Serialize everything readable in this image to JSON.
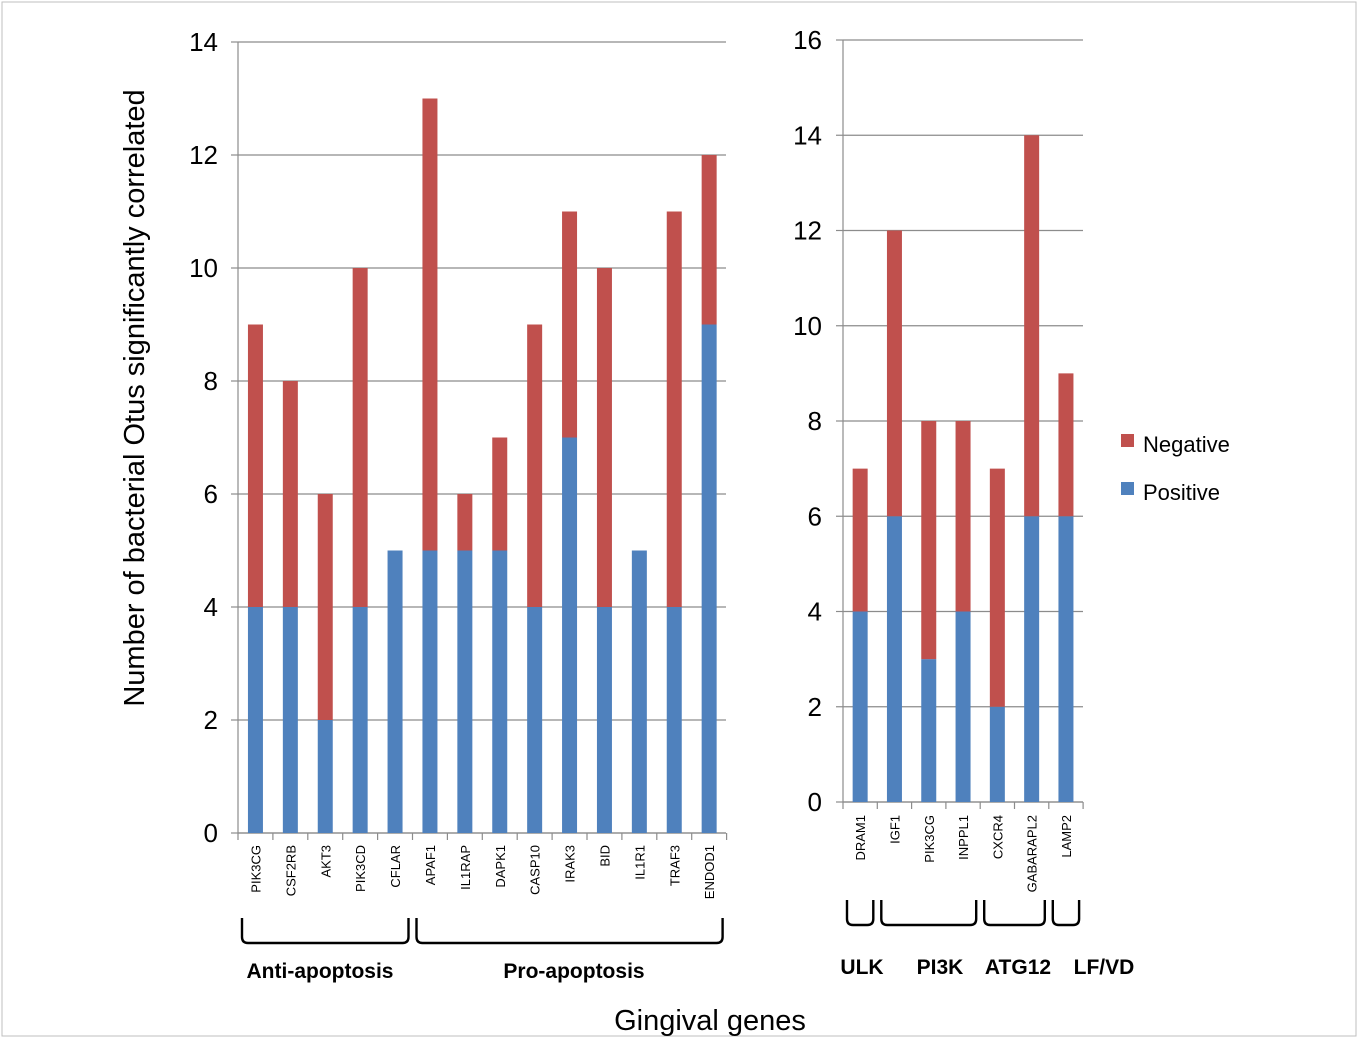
{
  "chart_data": [
    {
      "type": "bar",
      "stacked": true,
      "ylabel": "Number of bacterial Otus significantly correlated",
      "ylim": [
        0,
        14
      ],
      "yticks": [
        0,
        2,
        4,
        6,
        8,
        10,
        12,
        14
      ],
      "grid": true,
      "categories": [
        "PIK3CG",
        "CSF2RB",
        "AKT3",
        "PIK3CD",
        "CFLAR",
        "APAF1",
        "IL1RAP",
        "DAPK1",
        "CASP10",
        "IRAK3",
        "BID",
        "IL1R1",
        "TRAF3",
        "ENDOD1"
      ],
      "series": [
        {
          "name": "Positive",
          "values": [
            4,
            4,
            2,
            4,
            5,
            5,
            5,
            5,
            4,
            7,
            4,
            5,
            4,
            9
          ]
        },
        {
          "name": "Negative",
          "values": [
            5,
            4,
            4,
            6,
            0,
            8,
            1,
            2,
            5,
            4,
            6,
            0,
            7,
            3
          ]
        }
      ],
      "groups": [
        {
          "label": "Anti-apoptosis",
          "from": 0,
          "to": 4
        },
        {
          "label": "Pro-apoptosis",
          "from": 5,
          "to": 13
        }
      ]
    },
    {
      "type": "bar",
      "stacked": true,
      "ylim": [
        0,
        16
      ],
      "yticks": [
        0,
        2,
        4,
        6,
        8,
        10,
        12,
        14,
        16
      ],
      "grid": true,
      "categories": [
        "DRAM1",
        "IGF1",
        "PIK3CG",
        "INPPL1",
        "CXCR4",
        "GABARAPL2",
        "LAMP2"
      ],
      "series": [
        {
          "name": "Positive",
          "values": [
            4,
            6,
            3,
            4,
            2,
            6,
            6
          ]
        },
        {
          "name": "Negative",
          "values": [
            3,
            6,
            5,
            4,
            5,
            8,
            3
          ]
        }
      ],
      "groups": [
        {
          "label": "ULK",
          "from": 0,
          "to": 0
        },
        {
          "label": "PI3K",
          "from": 1,
          "to": 3
        },
        {
          "label": "ATG12",
          "from": 4,
          "to": 5
        },
        {
          "label": "LF/VD",
          "from": 6,
          "to": 6
        }
      ],
      "legend": {
        "position": "right",
        "entries": [
          "Negative",
          "Positive"
        ]
      }
    }
  ],
  "xlabel": "Gingival genes",
  "colors": {
    "Positive": "#4f81bd",
    "Negative": "#c0504d"
  }
}
